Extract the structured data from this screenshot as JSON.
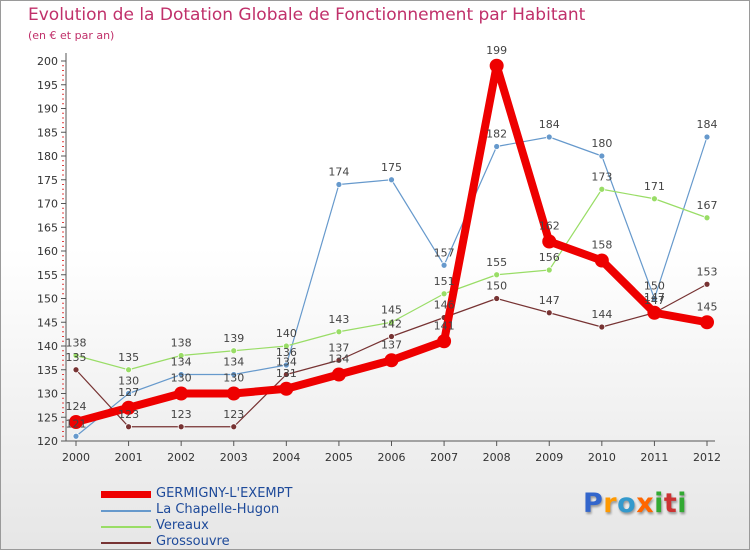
{
  "chart_data": {
    "type": "line",
    "title": "Evolution de la Dotation Globale de Fonctionnement par Habitant",
    "subtitle": "(en € et par an)",
    "xlabel": "",
    "ylabel": "",
    "categories": [
      "2000",
      "2001",
      "2002",
      "2003",
      "2004",
      "2005",
      "2006",
      "2007",
      "2008",
      "2009",
      "2010",
      "2011",
      "2012"
    ],
    "yticks": [
      "120",
      "125",
      "130",
      "135",
      "140",
      "145",
      "150",
      "155",
      "160",
      "165",
      "170",
      "175",
      "180",
      "185",
      "190",
      "195",
      "200"
    ],
    "ylim": [
      120,
      200
    ],
    "grid": false,
    "legend_position": "bottom-left",
    "series": [
      {
        "name": "GERMIGNY-L'EXEMPT",
        "color": "#ee0000",
        "values": [
          124,
          127,
          130,
          130,
          131,
          134,
          137,
          141,
          199,
          162,
          158,
          147,
          145
        ],
        "labels": [
          "124",
          "127",
          "130",
          "130",
          "131",
          "134",
          "137",
          "141",
          "199",
          "162",
          "158",
          "147",
          "145"
        ]
      },
      {
        "name": "La Chapelle-Hugon",
        "color": "#6699cc",
        "values": [
          121,
          130,
          134,
          134,
          136,
          174,
          175,
          157,
          182,
          184,
          180,
          150,
          184
        ],
        "labels": [
          "121",
          "130",
          "134",
          "134",
          "136",
          "174",
          "175",
          "157",
          "182",
          "184",
          "180",
          "150",
          "184"
        ]
      },
      {
        "name": "Vereaux",
        "color": "#99dd66",
        "values": [
          138,
          135,
          138,
          139,
          140,
          143,
          145,
          151,
          155,
          156,
          173,
          171,
          167
        ],
        "labels": [
          "138",
          "135",
          "138",
          "139",
          "140",
          "143",
          "145",
          "151",
          "155",
          "156",
          "173",
          "171",
          "167"
        ]
      },
      {
        "name": "Grossouvre",
        "color": "#773333",
        "values": [
          135,
          123,
          123,
          123,
          134,
          137,
          142,
          146,
          150,
          147,
          144,
          147,
          153
        ],
        "labels": [
          "135",
          "123",
          "123",
          "123",
          "134",
          "137",
          "142",
          "146",
          "150",
          "147",
          "144",
          "147",
          "153"
        ]
      }
    ]
  },
  "legend": {
    "items": [
      {
        "label": "GERMIGNY-L'EXEMPT"
      },
      {
        "label": "La Chapelle-Hugon"
      },
      {
        "label": "Vereaux"
      },
      {
        "label": "Grossouvre"
      }
    ]
  },
  "logo": {
    "letters": [
      "P",
      "r",
      "o",
      "x",
      "i",
      "t",
      "i"
    ],
    "colors": [
      "#3366cc",
      "#ff9900",
      "#3399cc",
      "#ff6600",
      "#33aa33",
      "#cc3333",
      "#33aa33"
    ]
  }
}
